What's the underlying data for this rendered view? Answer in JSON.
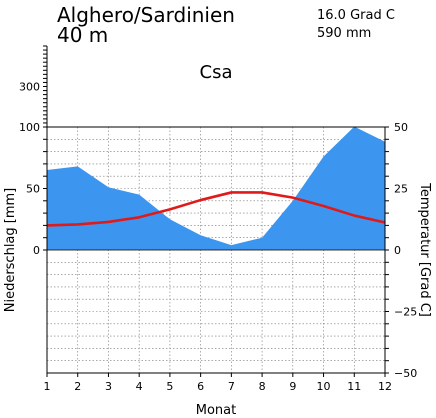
{
  "station": {
    "name": "Alghero/Sardinien",
    "elevation": "40 m",
    "mean_temperature": "16.0 Grad C",
    "annual_precipitation": "590 mm",
    "climate_class": "Csa"
  },
  "chart_data": {
    "type": "area",
    "title": "Alghero/Sardinien",
    "xlabel": "Monat",
    "ylabel_left": "Niederschlag [mm]",
    "ylabel_right": "Temperatur [Grad C]",
    "x": [
      1,
      2,
      3,
      4,
      5,
      6,
      7,
      8,
      9,
      10,
      11,
      12
    ],
    "x_tick_labels": [
      "1",
      "2",
      "3",
      "4",
      "5",
      "6",
      "7",
      "8",
      "9",
      "10",
      "11",
      "12"
    ],
    "precip_ticks": [
      {
        "value": 0,
        "label": "0"
      },
      {
        "value": 50,
        "label": "50"
      },
      {
        "value": 100,
        "label": "100"
      },
      {
        "value": 300,
        "label": "300"
      }
    ],
    "temp_ticks": [
      {
        "value": 50,
        "label": "50"
      },
      {
        "value": 25,
        "label": "25"
      },
      {
        "value": 0,
        "label": "0"
      },
      {
        "value": -25,
        "label": "−25"
      },
      {
        "value": -50,
        "label": "−50"
      }
    ],
    "precip_ylim": [
      -100,
      100
    ],
    "temp_ylim": [
      -50,
      50
    ],
    "precip_compressed_above": 100,
    "grid": true,
    "series": [
      {
        "name": "Niederschlag",
        "axis": "left",
        "kind": "area",
        "color": "#3c96f0",
        "values": [
          65,
          68,
          51,
          45,
          25,
          12,
          4,
          10,
          40,
          76,
          102,
          88
        ]
      },
      {
        "name": "Temperatur",
        "axis": "right",
        "kind": "line",
        "color": "#e01a1a",
        "values": [
          10,
          10.4,
          11.4,
          13.3,
          16.5,
          20.3,
          23.4,
          23.4,
          21.3,
          17.9,
          14,
          11.2
        ]
      }
    ]
  }
}
